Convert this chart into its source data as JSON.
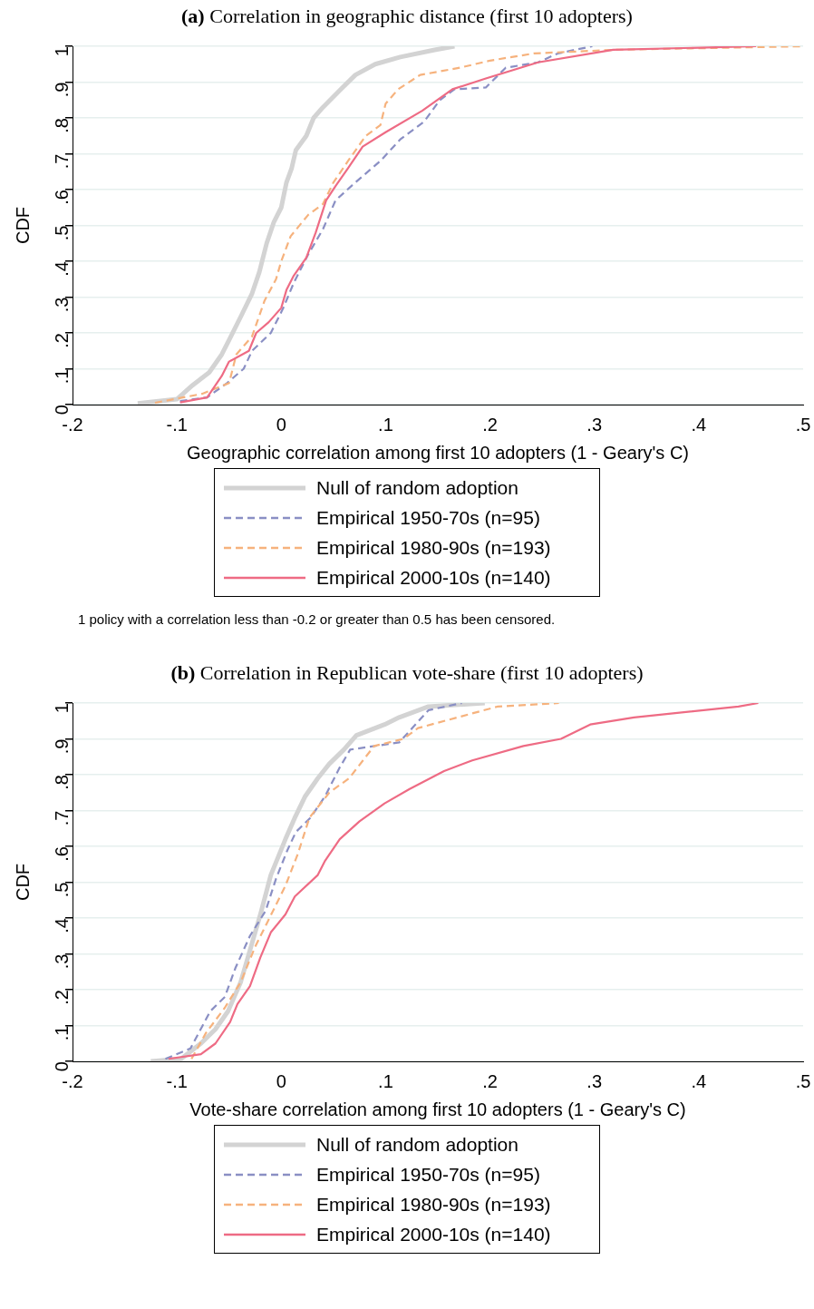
{
  "chart_data": [
    {
      "type": "line",
      "title": "(a) Correlation in geographic distance (first 10 adopters)",
      "xlabel": "Geographic correlation among first 10 adopters (1 - Geary's C)",
      "ylabel": "CDF",
      "xlim": [
        -0.2,
        0.5
      ],
      "xticks": [
        {
          "value": -0.2,
          "label": "-.2"
        },
        {
          "value": -0.1,
          "label": "-.1"
        },
        {
          "value": 0,
          "label": "0"
        },
        {
          "value": 0.1,
          "label": ".1"
        },
        {
          "value": 0.2,
          "label": ".2"
        },
        {
          "value": 0.3,
          "label": ".3"
        },
        {
          "value": 0.4,
          "label": ".4"
        },
        {
          "value": 0.5,
          "label": ".5"
        }
      ],
      "ylim": [
        0,
        1
      ],
      "yticks": [
        {
          "value": 0,
          "label": "0"
        },
        {
          "value": 0.1,
          "label": ".1"
        },
        {
          "value": 0.2,
          "label": ".2"
        },
        {
          "value": 0.3,
          "label": ".3"
        },
        {
          "value": 0.4,
          "label": ".4"
        },
        {
          "value": 0.5,
          "label": ".5"
        },
        {
          "value": 0.6,
          "label": ".6"
        },
        {
          "value": 0.7,
          "label": ".7"
        },
        {
          "value": 0.8,
          "label": ".8"
        },
        {
          "value": 0.9,
          "label": ".9"
        },
        {
          "value": 1,
          "label": "1"
        }
      ],
      "grid": "y",
      "legend": "bottom",
      "marker": "none",
      "annotations": [
        "1 policy with a correlation less than -0.2 or greater than 0.5 has been censored."
      ],
      "series": [
        {
          "name": "Null of random adoption",
          "color": "#d3d3d3",
          "line_style": "solid",
          "x": [
            -0.1375,
            -0.1,
            -0.085,
            -0.069,
            -0.057,
            -0.05,
            -0.038,
            -0.028,
            -0.021,
            -0.014,
            -0.007,
            0,
            0.005,
            0.01,
            0.014,
            0.024,
            0.031,
            0.04,
            0.057,
            0.071,
            0.09,
            0.114,
            0.147,
            0.166
          ],
          "values": [
            0.003,
            0.015,
            0.054,
            0.09,
            0.14,
            0.18,
            0.25,
            0.31,
            0.37,
            0.45,
            0.51,
            0.55,
            0.62,
            0.66,
            0.71,
            0.75,
            0.8,
            0.83,
            0.88,
            0.92,
            0.95,
            0.97,
            0.99,
            1
          ]
        },
        {
          "name": "Empirical 1950-70s (n=95)",
          "color": "#8a8fc4",
          "line_style": "dashed",
          "x": [
            -0.097,
            -0.071,
            -0.052,
            -0.036,
            -0.028,
            -0.01,
            0.002,
            0.012,
            0.026,
            0.04,
            0.052,
            0.071,
            0.095,
            0.114,
            0.137,
            0.152,
            0.166,
            0.196,
            0.215,
            0.246,
            0.265,
            0.298
          ],
          "values": [
            0.01,
            0.02,
            0.06,
            0.1,
            0.15,
            0.2,
            0.27,
            0.34,
            0.42,
            0.49,
            0.57,
            0.62,
            0.68,
            0.74,
            0.79,
            0.85,
            0.88,
            0.885,
            0.94,
            0.955,
            0.98,
            1
          ]
        },
        {
          "name": "Empirical 1980-90s (n=193)",
          "color": "#f6b27d",
          "line_style": "dashed",
          "x": [
            -0.121,
            -0.076,
            -0.05,
            -0.043,
            -0.028,
            -0.016,
            -0.005,
            0,
            0.009,
            0.026,
            0.04,
            0.05,
            0.064,
            0.081,
            0.095,
            0.1,
            0.112,
            0.133,
            0.171,
            0.2,
            0.242,
            0.318,
            0.5
          ],
          "values": [
            0.005,
            0.03,
            0.06,
            0.14,
            0.19,
            0.29,
            0.35,
            0.4,
            0.47,
            0.53,
            0.56,
            0.62,
            0.68,
            0.75,
            0.78,
            0.84,
            0.88,
            0.92,
            0.94,
            0.96,
            0.98,
            0.99,
            1
          ]
        },
        {
          "name": "Empirical 2000-10s (n=140)",
          "color": "#ee6b84",
          "line_style": "solid",
          "x": [
            -0.097,
            -0.071,
            -0.057,
            -0.05,
            -0.031,
            -0.024,
            -0.012,
            0,
            0.005,
            0.012,
            0.024,
            0.033,
            0.043,
            0.052,
            0.064,
            0.078,
            0.1,
            0.135,
            0.164,
            0.196,
            0.246,
            0.318,
            0.455
          ],
          "values": [
            0.006,
            0.02,
            0.08,
            0.12,
            0.15,
            0.2,
            0.23,
            0.27,
            0.32,
            0.36,
            0.41,
            0.48,
            0.57,
            0.61,
            0.66,
            0.72,
            0.76,
            0.82,
            0.88,
            0.91,
            0.955,
            0.99,
            1
          ]
        }
      ]
    },
    {
      "type": "line",
      "title": "(b) Correlation in Republican vote-share (first 10 adopters)",
      "xlabel": "Vote-share correlation among first 10 adopters (1 - Geary's C)",
      "ylabel": "CDF",
      "xlim": [
        -0.2,
        0.5
      ],
      "xticks": [
        {
          "value": -0.2,
          "label": "-.2"
        },
        {
          "value": -0.1,
          "label": "-.1"
        },
        {
          "value": 0,
          "label": "0"
        },
        {
          "value": 0.1,
          "label": ".1"
        },
        {
          "value": 0.2,
          "label": ".2"
        },
        {
          "value": 0.3,
          "label": ".3"
        },
        {
          "value": 0.4,
          "label": ".4"
        },
        {
          "value": 0.5,
          "label": ".5"
        }
      ],
      "ylim": [
        0,
        1
      ],
      "yticks": [
        {
          "value": 0,
          "label": "0"
        },
        {
          "value": 0.1,
          "label": ".1"
        },
        {
          "value": 0.2,
          "label": ".2"
        },
        {
          "value": 0.3,
          "label": ".3"
        },
        {
          "value": 0.4,
          "label": ".4"
        },
        {
          "value": 0.5,
          "label": ".5"
        },
        {
          "value": 0.6,
          "label": ".6"
        },
        {
          "value": 0.7,
          "label": ".7"
        },
        {
          "value": 0.8,
          "label": ".8"
        },
        {
          "value": 0.9,
          "label": ".9"
        },
        {
          "value": 1,
          "label": "1"
        }
      ],
      "grid": "y",
      "legend": "bottom",
      "marker": "none",
      "series": [
        {
          "name": "Null of random adoption",
          "color": "#d3d3d3",
          "line_style": "solid",
          "x": [
            -0.125,
            -0.096,
            -0.077,
            -0.063,
            -0.051,
            -0.039,
            -0.029,
            -0.02,
            -0.01,
            0.004,
            0.013,
            0.023,
            0.035,
            0.046,
            0.06,
            0.072,
            0.099,
            0.113,
            0.141,
            0.195
          ],
          "values": [
            0,
            0.007,
            0.05,
            0.09,
            0.14,
            0.22,
            0.32,
            0.41,
            0.52,
            0.62,
            0.68,
            0.74,
            0.79,
            0.83,
            0.87,
            0.91,
            0.94,
            0.96,
            0.99,
            1
          ]
        },
        {
          "name": "Empirical 1950-70s (n=95)",
          "color": "#8a8fc4",
          "line_style": "dashed",
          "x": [
            -0.111,
            -0.087,
            -0.068,
            -0.054,
            -0.044,
            -0.03,
            -0.015,
            -0.005,
            0.006,
            0.014,
            0.028,
            0.042,
            0.056,
            0.066,
            0.113,
            0.141,
            0.173
          ],
          "values": [
            0.007,
            0.036,
            0.14,
            0.18,
            0.26,
            0.35,
            0.42,
            0.51,
            0.59,
            0.64,
            0.68,
            0.74,
            0.82,
            0.87,
            0.89,
            0.98,
            1
          ]
        },
        {
          "name": "Empirical 1980-90s (n=193)",
          "color": "#f6b27d",
          "line_style": "dashed",
          "x": [
            -0.086,
            -0.072,
            -0.054,
            -0.039,
            -0.025,
            -0.013,
            0.004,
            0.016,
            0.027,
            0.046,
            0.065,
            0.089,
            0.117,
            0.131,
            0.169,
            0.207,
            0.266
          ],
          "values": [
            0.007,
            0.08,
            0.15,
            0.22,
            0.32,
            0.39,
            0.49,
            0.58,
            0.68,
            0.75,
            0.79,
            0.88,
            0.9,
            0.93,
            0.96,
            0.99,
            1
          ]
        },
        {
          "name": "Empirical 2000-10s (n=140)",
          "color": "#ee6b84",
          "line_style": "solid",
          "x": [
            -0.108,
            -0.077,
            -0.063,
            -0.049,
            -0.042,
            -0.03,
            -0.02,
            -0.01,
            0.004,
            0.013,
            0.035,
            0.042,
            0.056,
            0.075,
            0.099,
            0.123,
            0.156,
            0.183,
            0.232,
            0.268,
            0.296,
            0.338,
            0.438,
            0.457
          ],
          "values": [
            0.007,
            0.02,
            0.05,
            0.11,
            0.16,
            0.21,
            0.29,
            0.36,
            0.41,
            0.46,
            0.52,
            0.56,
            0.62,
            0.67,
            0.72,
            0.76,
            0.81,
            0.84,
            0.88,
            0.9,
            0.94,
            0.96,
            0.99,
            1
          ]
        }
      ]
    }
  ]
}
